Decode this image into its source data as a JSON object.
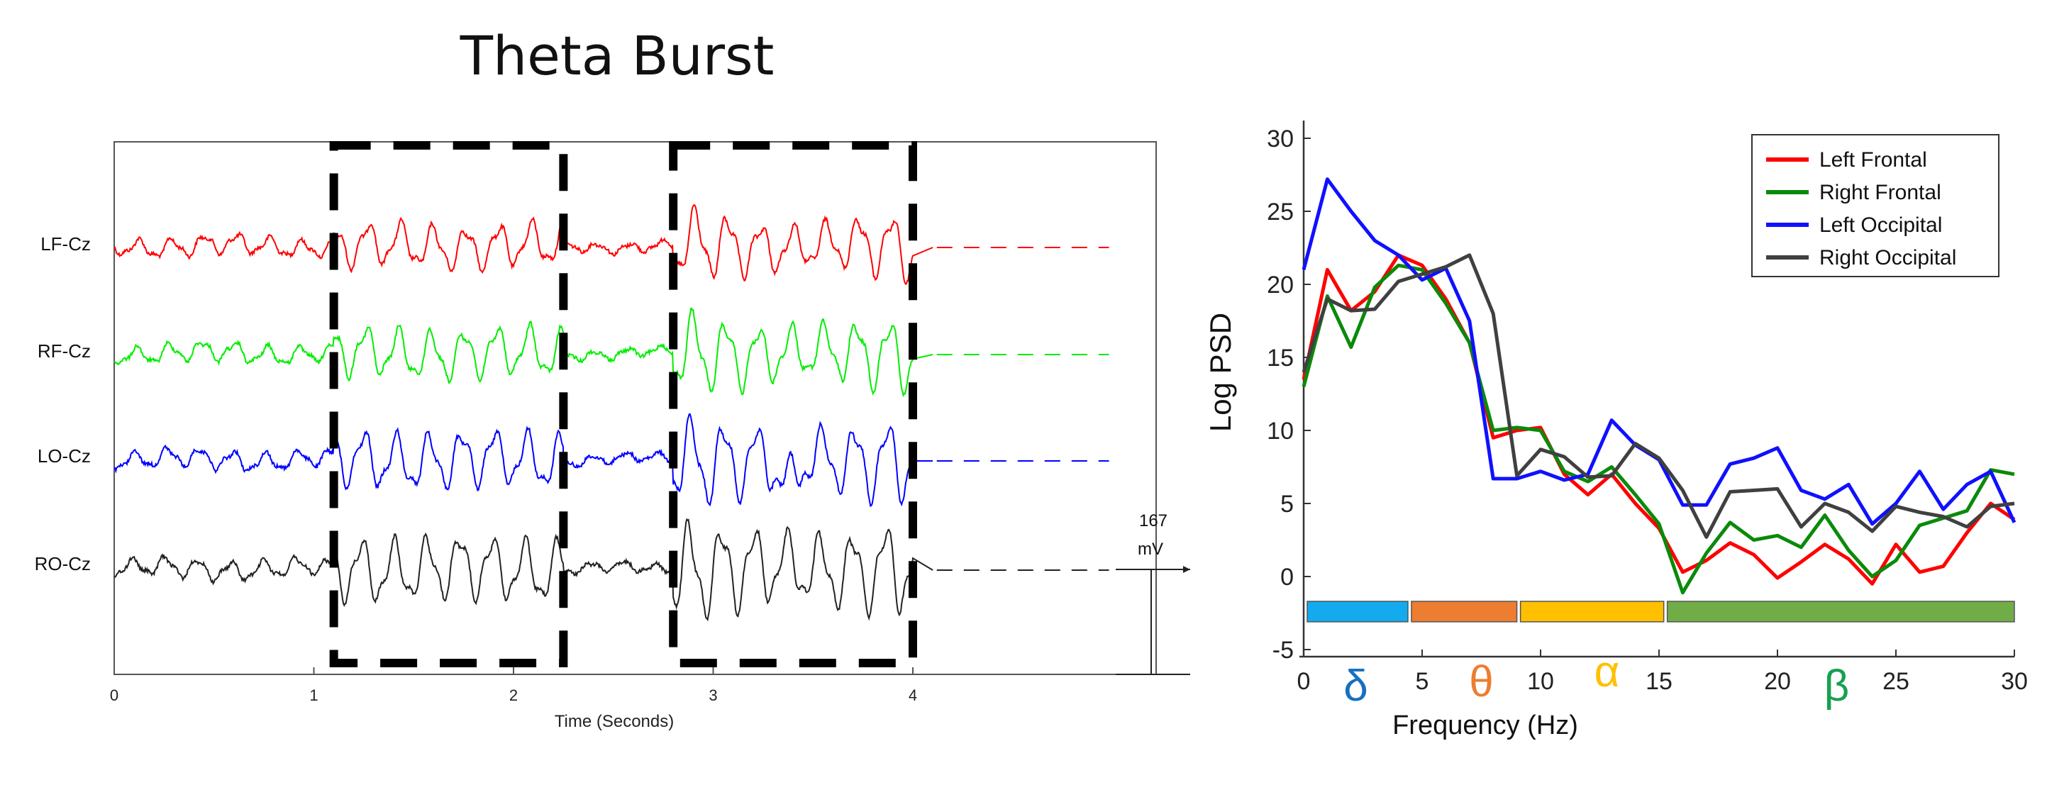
{
  "chart_data": [
    {
      "type": "line",
      "title": "Theta Burst",
      "xlabel": "Time (Seconds)",
      "xlim": [
        0,
        5
      ],
      "xticks": [
        "0",
        "1",
        "2",
        "3",
        "4"
      ],
      "channels": [
        {
          "name": "LF-Cz",
          "color": "#ff0000"
        },
        {
          "name": "RF-Cz",
          "color": "#00ee00"
        },
        {
          "name": "LO-Cz",
          "color": "#0000ff"
        },
        {
          "name": "RO-Cz",
          "color": "#222222"
        }
      ],
      "highlight_windows": [
        [
          1.1,
          2.25
        ],
        [
          2.8,
          4.0
        ]
      ],
      "scale_bar": {
        "value": "167",
        "unit": "mV"
      }
    },
    {
      "type": "line",
      "xlabel": "Frequency (Hz)",
      "ylabel": "Log PSD",
      "xlim": [
        0,
        30
      ],
      "ylim": [
        -5,
        30
      ],
      "xticks": [
        "0",
        "5",
        "10",
        "15",
        "20",
        "25",
        "30"
      ],
      "yticks": [
        "-5",
        "0",
        "5",
        "10",
        "15",
        "20",
        "25",
        "30"
      ],
      "legend_position": "top-right",
      "x": [
        0,
        1,
        2,
        3,
        4,
        5,
        6,
        7,
        8,
        9,
        10,
        11,
        12,
        13,
        14,
        15,
        16,
        17,
        18,
        19,
        20,
        21,
        22,
        23,
        24,
        25,
        26,
        27,
        28,
        29,
        30
      ],
      "series": [
        {
          "name": "Left Frontal",
          "color": "#ff0000",
          "values": [
            13.5,
            21,
            18.2,
            19.5,
            22,
            21.3,
            19,
            16,
            9.5,
            10,
            10.2,
            7,
            5.6,
            7,
            5,
            3.3,
            0.3,
            1.1,
            2.3,
            1.5,
            -0.1,
            1,
            2.2,
            1.2,
            -0.5,
            2.2,
            0.3,
            0.7,
            3,
            5,
            3.9
          ]
        },
        {
          "name": "Right Frontal",
          "color": "#0a8a0a",
          "values": [
            13,
            19.2,
            15.7,
            19.8,
            21.3,
            21,
            18.7,
            16,
            10,
            10.2,
            10,
            7.2,
            6.5,
            7.5,
            5.6,
            3.6,
            -1.1,
            1.6,
            3.7,
            2.5,
            2.8,
            2,
            4.2,
            1.8,
            0,
            1.1,
            3.5,
            4,
            4.5,
            7.3,
            7
          ]
        },
        {
          "name": "Left Occipital",
          "color": "#1010ff",
          "values": [
            21,
            27.2,
            25,
            23,
            22,
            20.3,
            21.1,
            17.5,
            6.7,
            6.7,
            7.2,
            6.6,
            7,
            10.7,
            9,
            8,
            4.9,
            4.9,
            7.7,
            8.1,
            8.8,
            5.9,
            5.3,
            6.3,
            3.6,
            5,
            7.2,
            4.6,
            6.3,
            7.2,
            3.7
          ]
        },
        {
          "name": "Right Occipital",
          "color": "#404040",
          "values": [
            14,
            19,
            18.2,
            18.3,
            20.2,
            20.7,
            21.2,
            22,
            18,
            6.9,
            8.7,
            8.2,
            6.8,
            6.9,
            9.1,
            8.1,
            5.9,
            2.7,
            5.8,
            5.9,
            6,
            3.4,
            5,
            4.4,
            3.1,
            4.8,
            4.4,
            4.1,
            3.4,
            4.8,
            5
          ]
        }
      ],
      "bands": [
        {
          "symbol": "δ",
          "range": [
            0,
            4.4
          ],
          "fill": "#14aaee",
          "label_color": "#1570c0"
        },
        {
          "symbol": "θ",
          "range": [
            4.4,
            9
          ],
          "fill": "#ed7d31",
          "label_color": "#ed7d31"
        },
        {
          "symbol": "α",
          "range": [
            9,
            15.2
          ],
          "fill": "#ffc000",
          "label_color": "#ffc000"
        },
        {
          "symbol": "β",
          "range": [
            15.2,
            30
          ],
          "fill": "#70ad47",
          "label_color": "#18a050"
        }
      ]
    }
  ]
}
